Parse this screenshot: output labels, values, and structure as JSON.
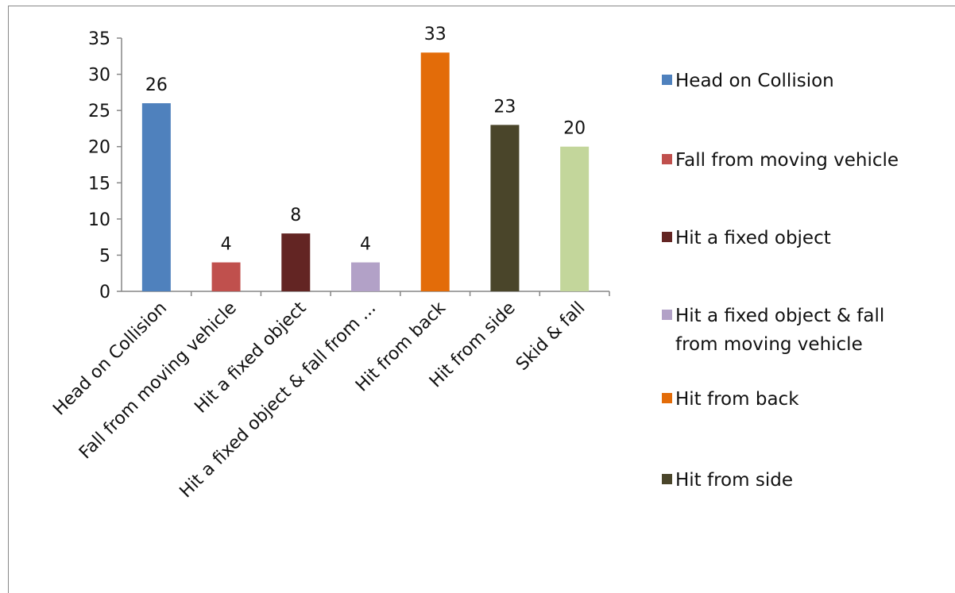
{
  "chart_data": {
    "type": "bar",
    "title": "",
    "xlabel": "",
    "ylabel": "",
    "ylim": [
      0,
      35
    ],
    "yticks": [
      0,
      5,
      10,
      15,
      20,
      25,
      30,
      35
    ],
    "grid": false,
    "legend_position": "right",
    "categories": [
      "Head on Collision",
      "Fall from moving vehicle",
      "Hit a fixed object",
      "Hit a fixed object & fall from moving vehicle",
      "Hit from back",
      "Hit from side",
      "Skid & fall"
    ],
    "x_tick_labels": [
      "Head on Collision",
      "Fall from moving vehicle",
      "Hit a fixed object",
      "Hit a fixed object & fall from ...",
      "Hit from back",
      "Hit from side",
      "Skid & fall"
    ],
    "values": [
      26,
      4,
      8,
      4,
      33,
      23,
      20
    ],
    "colors": [
      "#4f81bd",
      "#c0504d",
      "#632523",
      "#b2a1c7",
      "#e36c09",
      "#4a452a",
      "#c3d69b"
    ],
    "legend": [
      {
        "lines": [
          "Head on Collision"
        ],
        "color": "#4f81bd"
      },
      {
        "lines": [
          "Fall from moving vehicle"
        ],
        "color": "#c0504d"
      },
      {
        "lines": [
          "Hit a fixed object"
        ],
        "color": "#632523"
      },
      {
        "lines": [
          "Hit a fixed object & fall",
          "from moving vehicle"
        ],
        "color": "#b2a1c7"
      },
      {
        "lines": [
          "Hit from back"
        ],
        "color": "#e36c09"
      },
      {
        "lines": [
          "Hit from side"
        ],
        "color": "#4a452a"
      }
    ]
  }
}
